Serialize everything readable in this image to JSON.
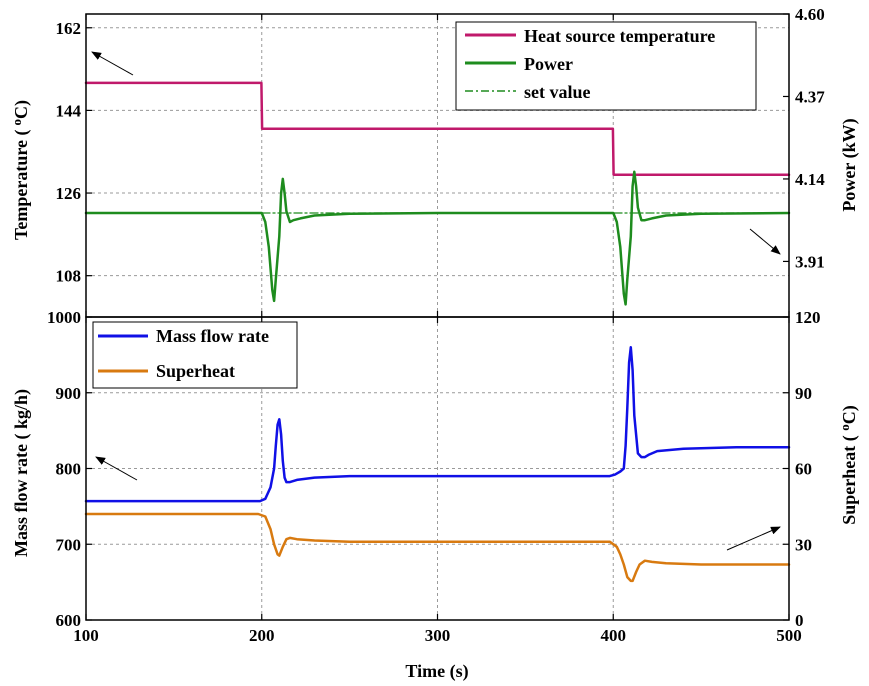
{
  "chart_data": [
    {
      "type": "line",
      "panel": "top",
      "xlim": [
        100,
        500
      ],
      "xticks": [
        "100",
        "200",
        "300",
        "400",
        "500"
      ],
      "left_axis": {
        "label": "Temperature ( °C)",
        "label_main": "Temperature (",
        "label_sup": "o",
        "label_unit": "C)",
        "ylim": [
          99,
          165
        ],
        "ticks": [
          "108",
          "126",
          "144",
          "162"
        ]
      },
      "right_axis": {
        "label": "Power (kW)",
        "ylim": [
          3.755,
          4.6
        ],
        "ticks": [
          "3.91",
          "4.14",
          "4.37",
          "4.60"
        ]
      },
      "legend_position": "top-right",
      "series": [
        {
          "name": "Heat source temperature",
          "axis": "left",
          "color": "#c0196b",
          "style": "solid",
          "x": [
            100,
            199.8,
            200.2,
            399.8,
            400.2,
            500
          ],
          "y": [
            150,
            150,
            140,
            140,
            130,
            130
          ]
        },
        {
          "name": "Power",
          "axis": "right",
          "color": "#1e8c1e",
          "style": "solid",
          "x": [
            100,
            200,
            202,
            204,
            206,
            207,
            208,
            210,
            211,
            212,
            213,
            214,
            216,
            218,
            222,
            230,
            250,
            300,
            400,
            402,
            404,
            406,
            407,
            408,
            410,
            411,
            412,
            413,
            414,
            416,
            418,
            422,
            430,
            450,
            500
          ],
          "y": [
            4.045,
            4.045,
            4.02,
            3.95,
            3.83,
            3.8,
            3.86,
            3.98,
            4.1,
            4.14,
            4.1,
            4.05,
            4.02,
            4.025,
            4.03,
            4.038,
            4.043,
            4.045,
            4.045,
            4.02,
            3.95,
            3.82,
            3.79,
            3.86,
            3.98,
            4.12,
            4.16,
            4.12,
            4.06,
            4.025,
            4.025,
            4.03,
            4.038,
            4.043,
            4.045
          ]
        },
        {
          "name": "set value",
          "axis": "right",
          "color": "#1e8c1e",
          "style": "dashdot",
          "x": [
            100,
            500
          ],
          "y": [
            4.045,
            4.045
          ]
        }
      ]
    },
    {
      "type": "line",
      "panel": "bottom",
      "xlim": [
        100,
        500
      ],
      "xticks": [
        "100",
        "200",
        "300",
        "400",
        "500"
      ],
      "xlabel": "Time  (s)",
      "left_axis": {
        "label": "Mass flow rate ( kg/h)",
        "ylim": [
          600,
          1000
        ],
        "ticks": [
          "600",
          "700",
          "800",
          "900",
          "1000"
        ]
      },
      "right_axis": {
        "label": "Superheat ( °C)",
        "label_main": "Superheat ( ",
        "label_sup": "o",
        "label_unit": "C)",
        "ylim": [
          0,
          120
        ],
        "ticks": [
          "0",
          "30",
          "60",
          "90",
          "120"
        ]
      },
      "legend_position": "top-left",
      "series": [
        {
          "name": "Mass flow rate",
          "axis": "left",
          "color": "#1010e6",
          "style": "solid",
          "x": [
            100,
            199,
            202,
            205,
            207,
            208,
            209,
            210,
            211,
            212,
            213,
            214,
            216,
            220,
            230,
            250,
            300,
            398,
            401,
            404,
            406,
            407,
            408,
            409,
            410,
            411,
            412,
            414,
            416,
            418,
            420,
            425,
            440,
            470,
            500
          ],
          "y": [
            757,
            757,
            760,
            775,
            800,
            830,
            858,
            865,
            845,
            810,
            788,
            782,
            782,
            785,
            788,
            790,
            790,
            790,
            792,
            796,
            800,
            830,
            880,
            940,
            960,
            930,
            870,
            820,
            815,
            815,
            818,
            823,
            826,
            828,
            828
          ]
        },
        {
          "name": "Superheat",
          "axis": "right",
          "color": "#d87a10",
          "style": "solid",
          "x": [
            100,
            198,
            202,
            205,
            207,
            209,
            210,
            212,
            214,
            216,
            220,
            230,
            250,
            300,
            398,
            402,
            404,
            406,
            408,
            410,
            411,
            413,
            415,
            418,
            422,
            430,
            450,
            500
          ],
          "y": [
            42,
            42,
            41,
            36,
            30,
            26,
            25.5,
            29,
            32,
            32.5,
            32,
            31.5,
            31,
            31,
            31,
            29,
            26,
            22,
            17,
            15.5,
            15.5,
            19,
            22,
            23.5,
            23,
            22.5,
            22,
            22
          ]
        }
      ]
    }
  ]
}
